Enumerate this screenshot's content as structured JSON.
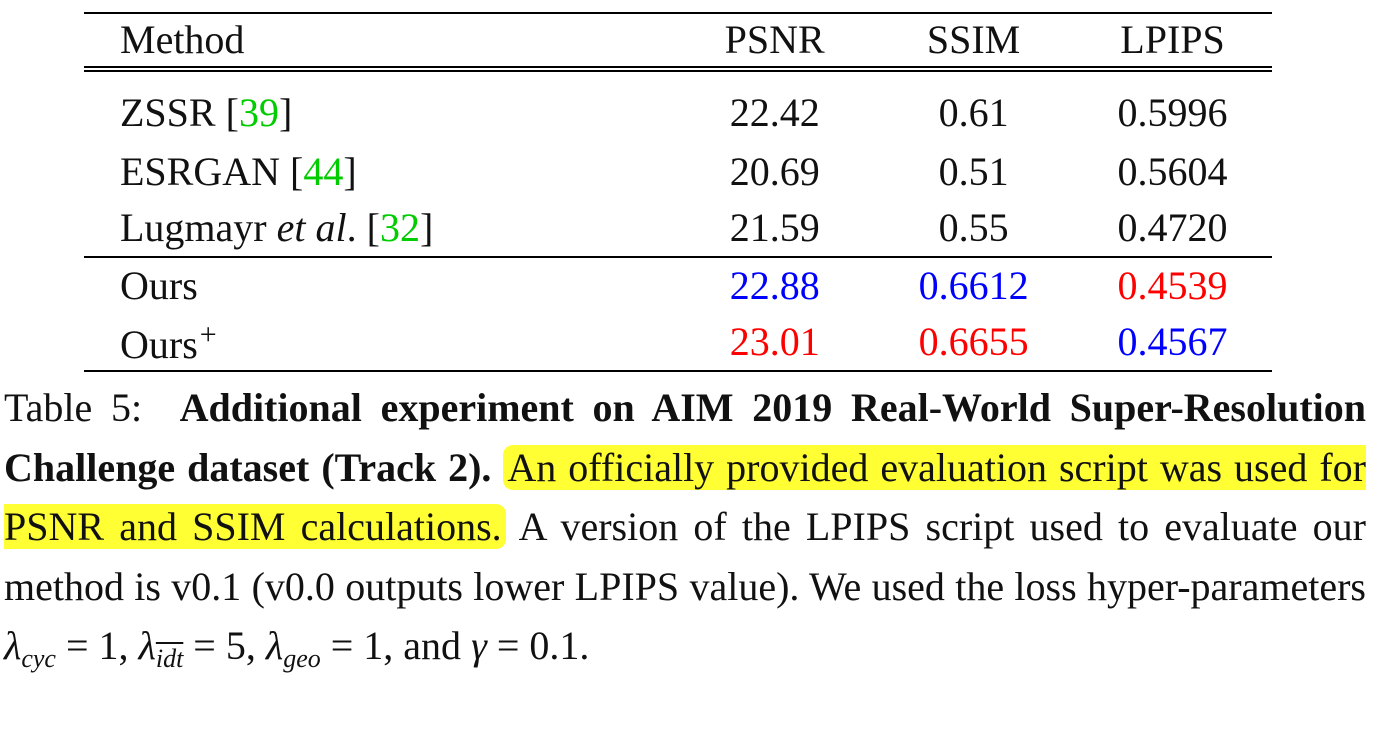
{
  "table": {
    "headers": [
      "Method",
      "PSNR",
      "SSIM",
      "LPIPS"
    ],
    "rows": [
      {
        "method": "ZSSR",
        "cite": "39",
        "psnr": "22.42",
        "ssim": "0.61",
        "lpips": "0.5996"
      },
      {
        "method": "ESRGAN",
        "cite": "44",
        "psnr": "20.69",
        "ssim": "0.51",
        "lpips": "0.5604"
      },
      {
        "method_prefix": "Lugmayr ",
        "method_italic": "et al",
        "method_suffix": ".",
        "cite": "32",
        "psnr": "21.59",
        "ssim": "0.55",
        "lpips": "0.4720"
      },
      {
        "method": "Ours",
        "psnr": "22.88",
        "ssim": "0.6612",
        "lpips": "0.4539"
      },
      {
        "method": "Ours",
        "method_sup": "+",
        "psnr": "23.01",
        "ssim": "0.6655",
        "lpips": "0.4567"
      }
    ]
  },
  "caption": {
    "label": "Table 5:",
    "bold_title": "Additional experiment on AIM 2019 Real-World Super-Resolution Challenge dataset (Track 2).",
    "highlighted": "An officially provided evaluation script was used for PSNR and SSIM calculations.",
    "body": "A version of the LPIPS script used to evaluate our method is v0.1 (v0.0 outputs lower LPIPS value). We used the loss hyper-parameters",
    "math": {
      "lambda": "λ",
      "cyc_sub": "cyc",
      "cyc_val": " = 1,",
      "idt_sub": "idt",
      "idt_val": " = 5,",
      "geo_sub": "geo",
      "geo_val": " = 1,",
      "and": "and",
      "gamma": "γ",
      "gamma_val": " = 0.1."
    }
  },
  "colors": {
    "best": "#ff0000",
    "second": "#0000ff",
    "citation": "#00cc00",
    "highlight": "#ffff33"
  }
}
